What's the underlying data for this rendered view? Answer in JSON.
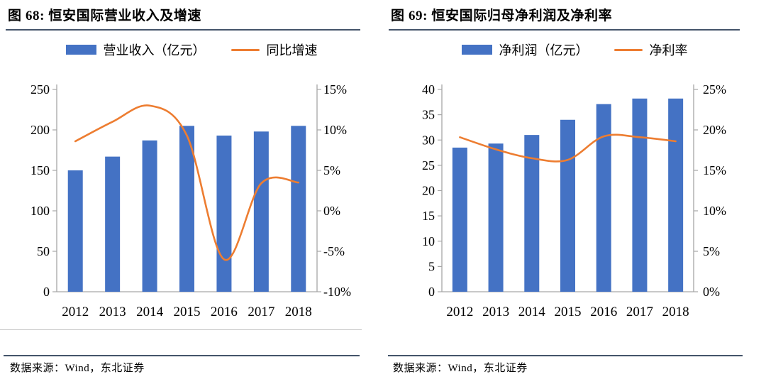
{
  "colors": {
    "bar_blue": "#4472C4",
    "line_orange": "#ED7D31",
    "rule_dark": "#44546A",
    "rule_light": "#C9C9C9",
    "axis_gray": "#A6A6A6"
  },
  "panels": [
    {
      "figure_label": "图 68: 恒安国际营业收入及增速",
      "legend": [
        {
          "swatch": "bar",
          "label": "营业收入（亿元）"
        },
        {
          "swatch": "line",
          "label": "同比增速"
        }
      ],
      "source_note": "数据来源：Wind，东北证券",
      "chart_data": {
        "type": "bar+line",
        "categories": [
          "2012",
          "2013",
          "2014",
          "2015",
          "2016",
          "2017",
          "2018"
        ],
        "series": [
          {
            "name": "营业收入（亿元）",
            "type": "bar",
            "axis": "left",
            "values": [
              150,
              167,
              187,
              205,
              193,
              198,
              205
            ]
          },
          {
            "name": "同比增速",
            "type": "line",
            "axis": "right",
            "unit": "%",
            "values": [
              8.6,
              11.0,
              13.0,
              9.3,
              -6.0,
              3.4,
              3.5
            ]
          }
        ],
        "left_axis": {
          "min": 0,
          "max": 250,
          "step": 50,
          "labels": [
            "0",
            "50",
            "100",
            "150",
            "200",
            "250"
          ]
        },
        "right_axis": {
          "min": -10,
          "max": 15,
          "step": 5,
          "format": "percent",
          "labels": [
            "-10%",
            "-5%",
            "0%",
            "5%",
            "10%",
            "15%"
          ]
        },
        "grid": false,
        "legend_position": "top",
        "colors": {
          "bar": "#4472C4",
          "line": "#ED7D31"
        }
      }
    },
    {
      "figure_label": "图 69: 恒安国际归母净利润及净利率",
      "legend": [
        {
          "swatch": "bar",
          "label": "净利润（亿元）"
        },
        {
          "swatch": "line",
          "label": "净利率"
        }
      ],
      "source_note": "数据来源：Wind，东北证券",
      "chart_data": {
        "type": "bar+line",
        "categories": [
          "2012",
          "2013",
          "2014",
          "2015",
          "2016",
          "2017",
          "2018"
        ],
        "series": [
          {
            "name": "净利润（亿元）",
            "type": "bar",
            "axis": "left",
            "values": [
              28.5,
              29.3,
              31.0,
              34.0,
              37.1,
              38.2,
              38.2
            ]
          },
          {
            "name": "净利率",
            "type": "line",
            "axis": "right",
            "unit": "%",
            "values": [
              19.1,
              17.6,
              16.5,
              16.3,
              19.2,
              19.1,
              18.6
            ]
          }
        ],
        "left_axis": {
          "min": 0,
          "max": 40,
          "step": 5,
          "labels": [
            "0",
            "5",
            "10",
            "15",
            "20",
            "25",
            "30",
            "35",
            "40"
          ]
        },
        "right_axis": {
          "min": 0,
          "max": 25,
          "step": 5,
          "format": "percent",
          "labels": [
            "0%",
            "5%",
            "10%",
            "15%",
            "20%",
            "25%"
          ]
        },
        "grid": false,
        "legend_position": "top",
        "colors": {
          "bar": "#4472C4",
          "line": "#ED7D31"
        }
      }
    }
  ]
}
